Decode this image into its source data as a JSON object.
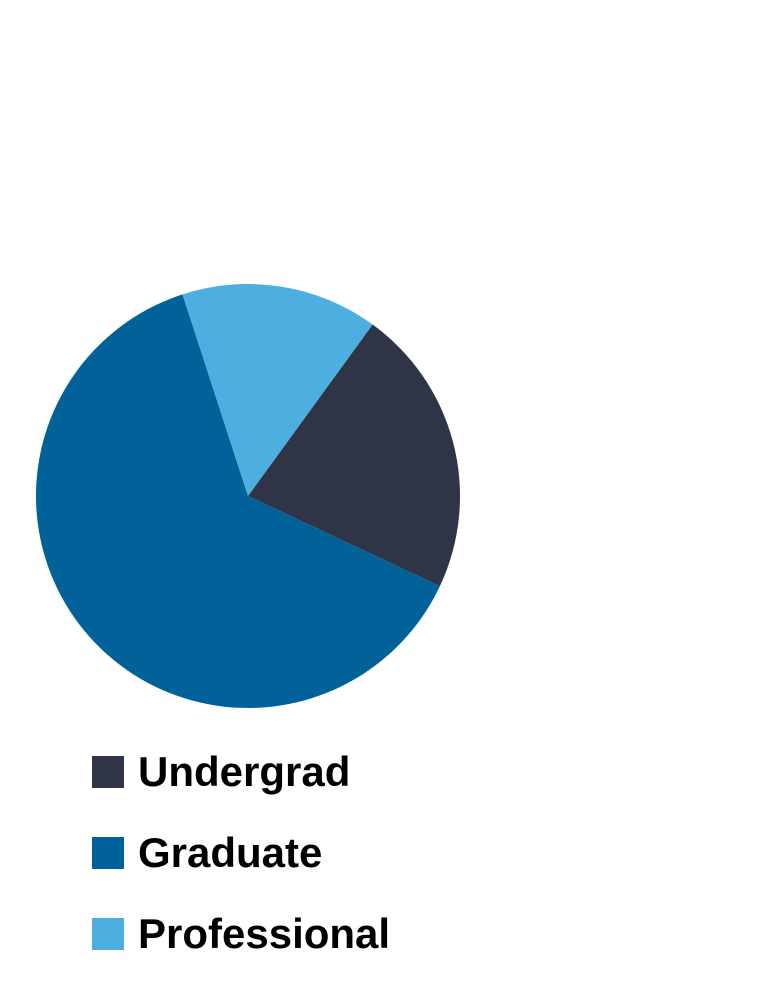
{
  "chart_data": {
    "type": "pie",
    "categories": [
      "Undergrad",
      "Graduate",
      "Professional"
    ],
    "values": [
      22,
      63,
      15
    ],
    "colors": [
      "#2f3547",
      "#006298",
      "#4daee0"
    ],
    "legend_position": "bottom-left",
    "start_angle_deg": 54,
    "direction": "clockwise"
  }
}
